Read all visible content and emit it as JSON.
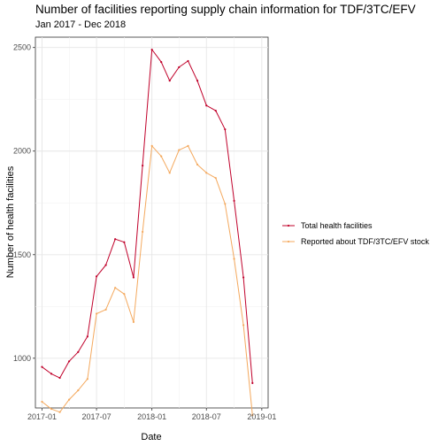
{
  "chart_data": {
    "type": "line",
    "title": "Number of facilities reporting supply chain information for TDF/3TC/EFV",
    "subtitle": "Jan 2017 - Dec 2018",
    "xlabel": "Date",
    "ylabel": "Number of health facilities",
    "xlim": [
      "2016-12-10",
      "2019-01-22"
    ],
    "ylim": [
      760,
      2550
    ],
    "x_ticks": [
      {
        "date": "2017-01-01",
        "label": "2017-01"
      },
      {
        "date": "2017-07-01",
        "label": "2017-07"
      },
      {
        "date": "2018-01-01",
        "label": "2018-01"
      },
      {
        "date": "2018-07-01",
        "label": "2018-07"
      },
      {
        "date": "2019-01-01",
        "label": "2019-01"
      }
    ],
    "y_ticks": [
      1000,
      1500,
      2000,
      2500
    ],
    "grid": true,
    "legend_position": "right",
    "x": [
      "2017-01-01",
      "2017-02-01",
      "2017-03-01",
      "2017-04-01",
      "2017-05-01",
      "2017-06-01",
      "2017-07-01",
      "2017-08-01",
      "2017-09-01",
      "2017-10-01",
      "2017-11-01",
      "2017-12-01",
      "2018-01-01",
      "2018-02-01",
      "2018-03-01",
      "2018-04-01",
      "2018-05-01",
      "2018-06-01",
      "2018-07-01",
      "2018-08-01",
      "2018-09-01",
      "2018-10-01",
      "2018-11-01",
      "2018-12-01"
    ],
    "series": [
      {
        "name": "Total health facilities",
        "color": "#c0002a",
        "values": [
          958,
          925,
          905,
          985,
          1030,
          1105,
          1395,
          1450,
          1575,
          1560,
          1390,
          1930,
          2490,
          2430,
          2340,
          2405,
          2435,
          2340,
          2220,
          2195,
          2105,
          1760,
          1390,
          880
        ]
      },
      {
        "name": "Reported about TDF/3TC/EFV stock",
        "color": "#f4a95e",
        "values": [
          790,
          755,
          740,
          800,
          845,
          900,
          1215,
          1235,
          1340,
          1310,
          1175,
          1610,
          2025,
          1975,
          1895,
          2005,
          2025,
          1935,
          1895,
          1870,
          1745,
          1480,
          1160,
          725
        ]
      }
    ]
  }
}
